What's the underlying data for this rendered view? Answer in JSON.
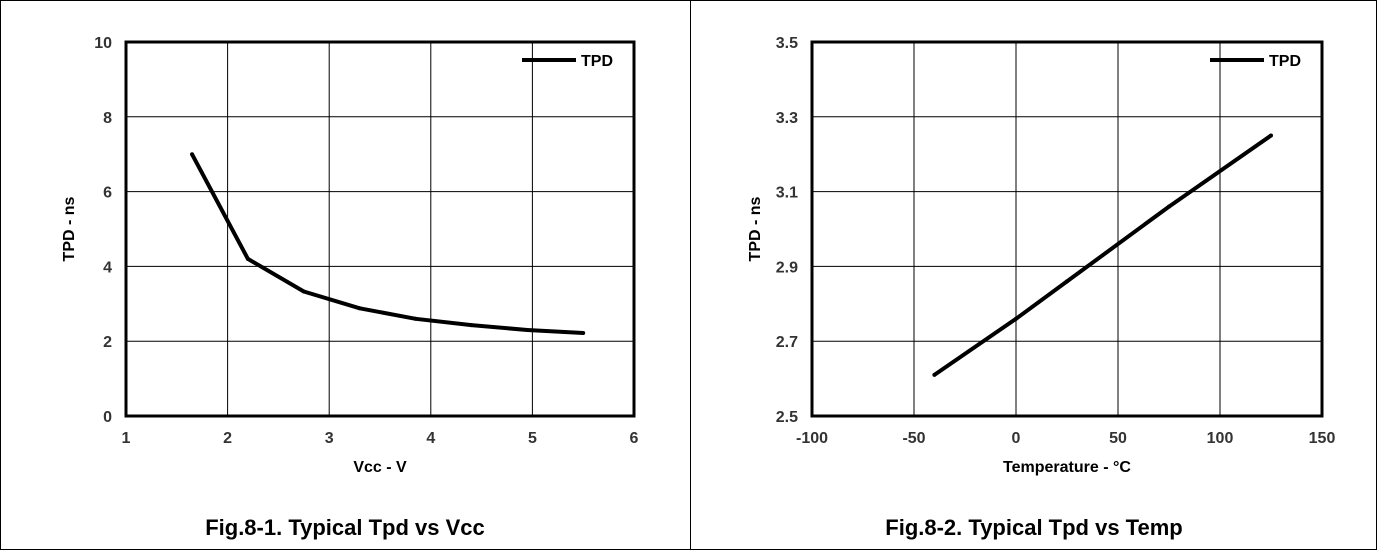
{
  "chart_data": [
    {
      "type": "line",
      "caption": "Fig.8-1. Typical Tpd vs Vcc",
      "xlabel": "Vcc - V",
      "ylabel": "TPD - ns",
      "xlim": [
        1,
        6
      ],
      "ylim": [
        0,
        10
      ],
      "xticks": [
        1,
        2,
        3,
        4,
        5,
        6
      ],
      "yticks": [
        0,
        2,
        4,
        6,
        8,
        10
      ],
      "x_tick_labels": [
        "1",
        "2",
        "3",
        "4",
        "5",
        "6"
      ],
      "y_tick_labels": [
        "0",
        "2",
        "4",
        "6",
        "8",
        "10"
      ],
      "grid": true,
      "legend": "top-right",
      "series": [
        {
          "name": "TPD",
          "x": [
            1.65,
            2.2,
            2.75,
            3.3,
            3.85,
            4.4,
            4.95,
            5.5
          ],
          "y": [
            7.0,
            4.2,
            3.33,
            2.88,
            2.6,
            2.43,
            2.3,
            2.22
          ]
        }
      ]
    },
    {
      "type": "line",
      "caption": "Fig.8-2. Typical Tpd vs Temp",
      "xlabel": "Temperature - °C",
      "ylabel": "TPD - ns",
      "xlim": [
        -100,
        150
      ],
      "ylim": [
        2.5,
        3.5
      ],
      "xticks": [
        -100,
        -50,
        0,
        50,
        100,
        150
      ],
      "yticks": [
        2.5,
        2.7,
        2.9,
        3.1,
        3.3,
        3.5
      ],
      "x_tick_labels": [
        "-100",
        "-50",
        "0",
        "50",
        "100",
        "150"
      ],
      "y_tick_labels": [
        "2.5",
        "2.7",
        "2.9",
        "3.1",
        "3.3",
        "3.5"
      ],
      "grid": true,
      "legend": "top-right",
      "series": [
        {
          "name": "TPD",
          "x": [
            -40,
            0,
            25,
            75,
            125
          ],
          "y": [
            2.61,
            2.76,
            2.86,
            3.06,
            3.25
          ]
        }
      ]
    }
  ]
}
